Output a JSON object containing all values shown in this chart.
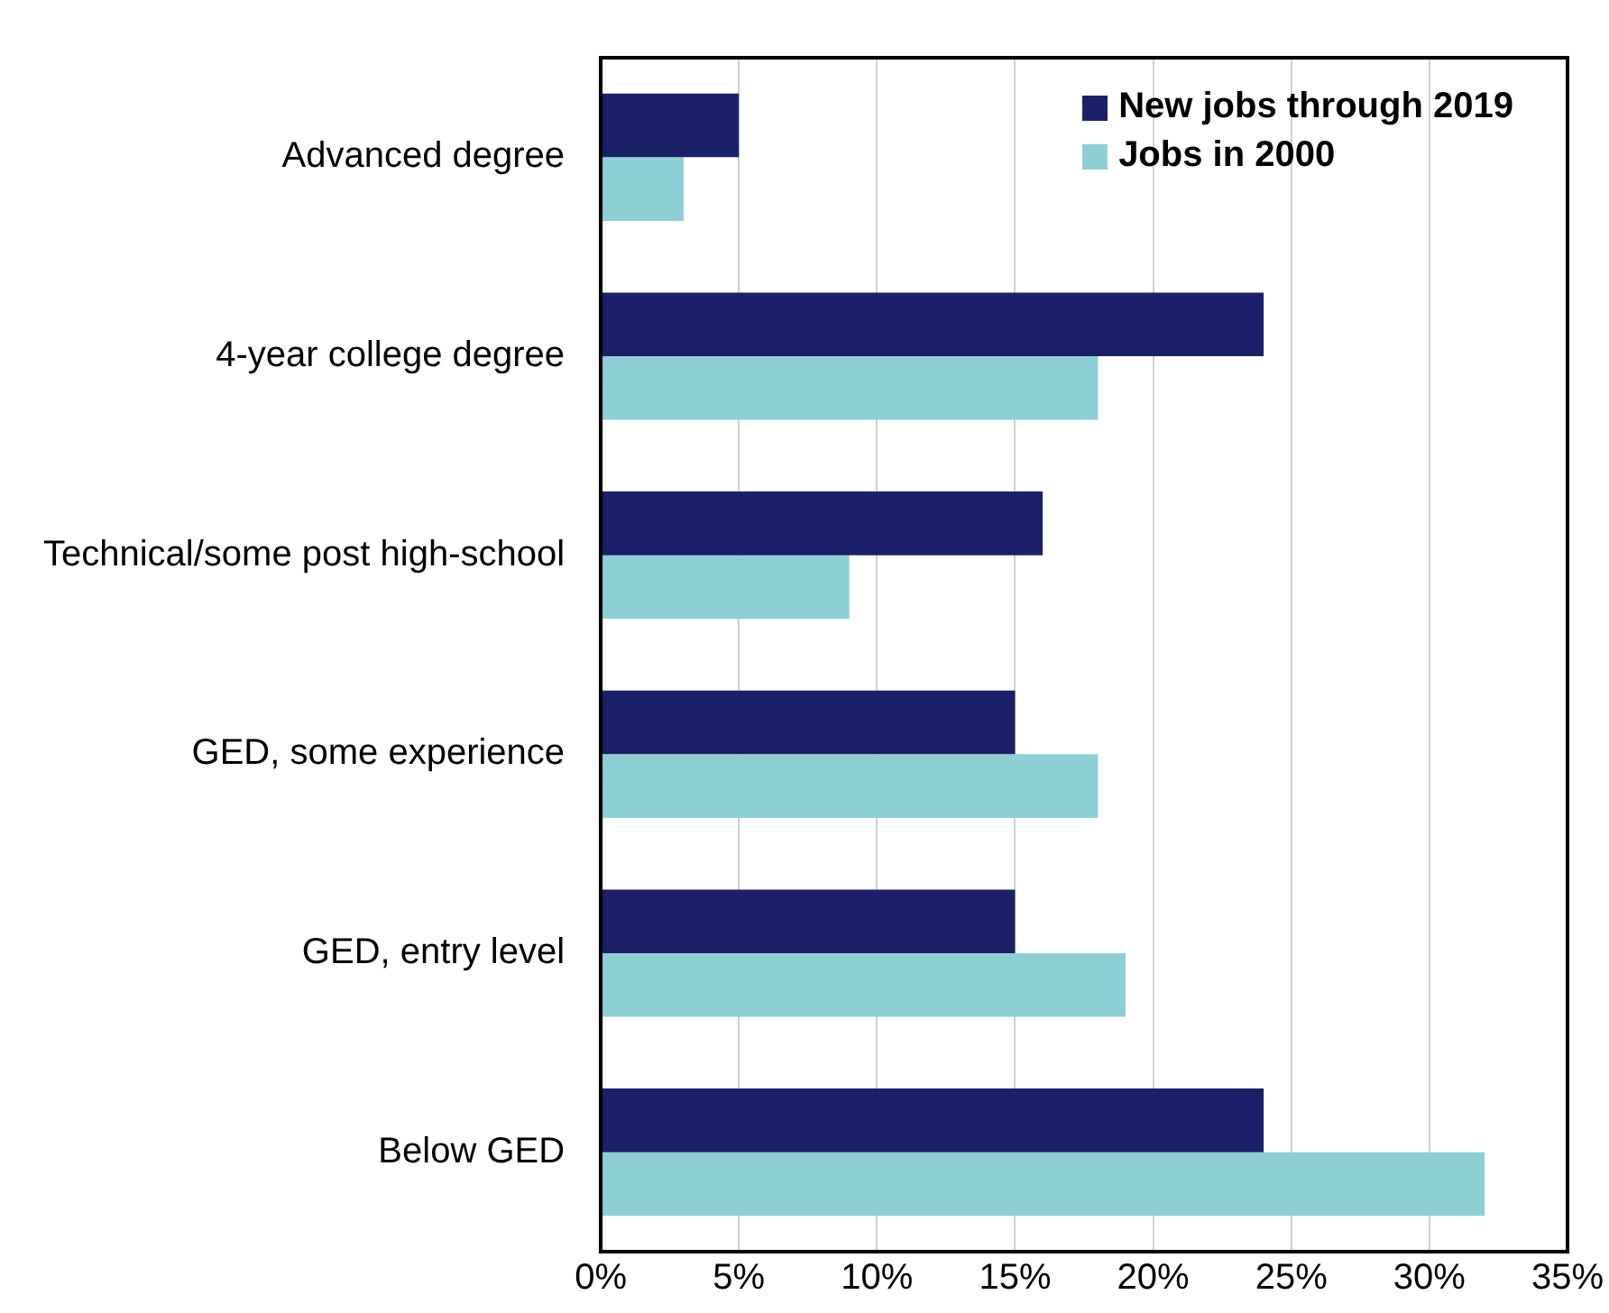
{
  "chart_data": {
    "type": "bar",
    "orientation": "horizontal",
    "categories": [
      "Advanced degree",
      "4-year college degree",
      "Technical/some post high-school",
      "GED, some experience",
      "GED, entry level",
      "Below GED"
    ],
    "series": [
      {
        "name": "New jobs through 2019",
        "color": "#1b2168",
        "values": [
          5,
          24,
          16,
          15,
          15,
          24
        ]
      },
      {
        "name": "Jobs in 2000",
        "color": "#8ecfd5",
        "values": [
          3,
          18,
          9,
          18,
          19,
          32
        ]
      }
    ],
    "xlim": [
      0,
      35
    ],
    "xticks": [
      {
        "value": 0,
        "label": "0%"
      },
      {
        "value": 5,
        "label": "5%"
      },
      {
        "value": 10,
        "label": "10%"
      },
      {
        "value": 15,
        "label": "15%"
      },
      {
        "value": 20,
        "label": "20%"
      },
      {
        "value": 25,
        "label": "25%"
      },
      {
        "value": 30,
        "label": "30%"
      },
      {
        "value": 35,
        "label": "35%"
      }
    ],
    "grid": "x",
    "legend": "top right"
  }
}
